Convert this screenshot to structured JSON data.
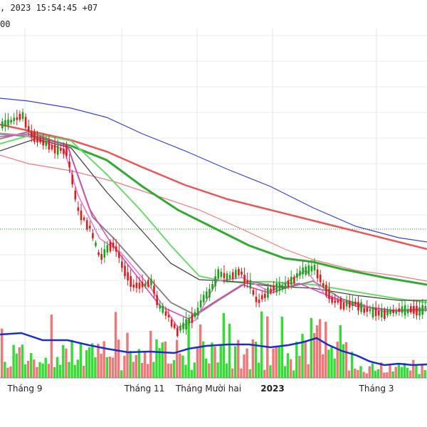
{
  "header": {
    "line1": ", 2023 15:54:45 +07",
    "line2": "00"
  },
  "chart_data": {
    "type": "candlestick",
    "x_tick_labels": [
      {
        "label": "Tháng 9",
        "bold": false
      },
      {
        "label": "Tháng 11",
        "bold": false
      },
      {
        "label": "Tháng Mười hai",
        "bold": false
      },
      {
        "label": "2023",
        "bold": true
      },
      {
        "label": "Tháng 3",
        "bold": false
      }
    ],
    "reference_line": "dotted green horizontal",
    "candles_description": "daily OHLC; rise from Aug into early Sep, sharp decline through Oct to Nov low, rebound in Dec, sideways to lower into Mar",
    "moving_averages": [
      {
        "color": "#3344dd",
        "role": "short MA (blue)"
      },
      {
        "color": "#ee5555",
        "role": "short MA (red)"
      },
      {
        "color": "#f07b7b",
        "role": "MA (light red)"
      },
      {
        "color": "#33aa33",
        "role": "MA (green)"
      },
      {
        "color": "#66dd66",
        "role": "MA (light green)"
      },
      {
        "color": "#444444",
        "role": "MA (dark gray)"
      },
      {
        "color": "#888888",
        "role": "MA (gray)"
      },
      {
        "color": "#dd44bb",
        "role": "long MA (magenta)"
      },
      {
        "color": "#ee77dd",
        "role": "long MA (pink)"
      }
    ],
    "volume_bar_colors": {
      "up": "#33dd33",
      "down": "#ee7777"
    },
    "volume_ma_color": "#1a2ec8",
    "grid": true
  }
}
